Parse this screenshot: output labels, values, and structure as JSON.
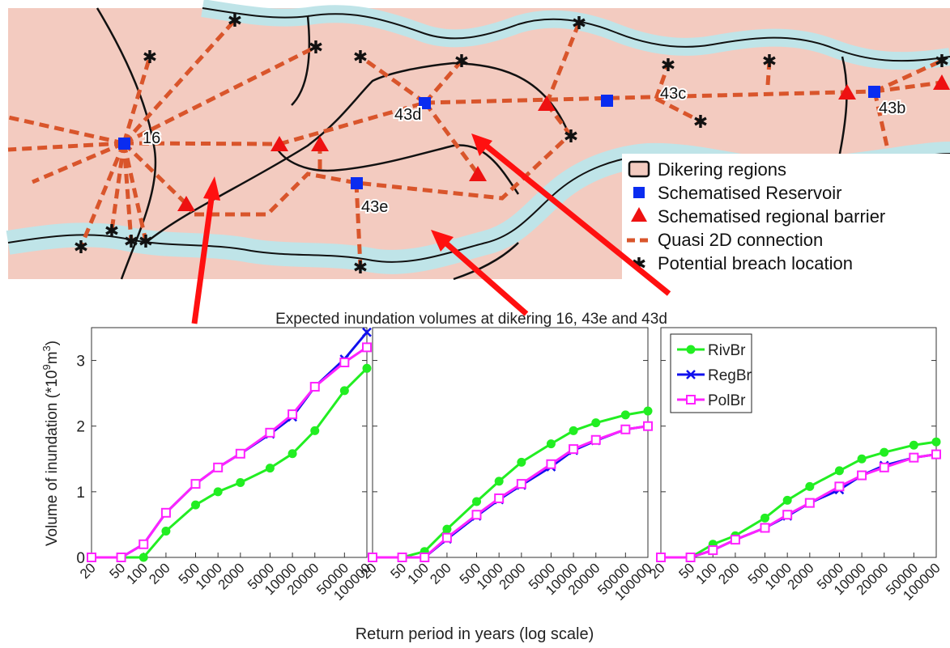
{
  "map": {
    "region_labels": [
      "16",
      "43d",
      "43c",
      "43b",
      "43e"
    ],
    "legend": [
      {
        "symbol": "dikering-box-icon",
        "label": "Dikering regions"
      },
      {
        "symbol": "reservoir-square-icon",
        "label": "Schematised Reservoir"
      },
      {
        "symbol": "barrier-triangle-icon",
        "label": "Schematised regional barrier"
      },
      {
        "symbol": "dashed-line-icon",
        "label": "Quasi 2D connection"
      },
      {
        "symbol": "asterisk-icon",
        "label": "Potential breach location"
      }
    ],
    "colors": {
      "land": "#f3cbc0",
      "water": "#bfe4e8",
      "connection": "#d9552b",
      "reservoir": "#0a2cf0",
      "barrier": "#ee1111",
      "arrow": "#ff1010"
    }
  },
  "chart_data": {
    "type": "line",
    "title": "Expected inundation volumes at dikering 16, 43e and 43d",
    "xlabel": "Return period in years (log scale)",
    "ylabel_main": "Volume of inundation (*10",
    "ylabel_sup1": "9",
    "ylabel_mid": "m",
    "ylabel_sup2": "3",
    "ylabel_end": ")",
    "x": [
      20,
      50,
      100,
      200,
      500,
      1000,
      2000,
      5000,
      10000,
      20000,
      50000,
      100000
    ],
    "x_tick_labels": [
      "20",
      "50",
      "100",
      "200",
      "500",
      "1000",
      "2000",
      "5000",
      "10000",
      "20000",
      "50000",
      "100000"
    ],
    "x_scale": "log",
    "ylim": [
      0,
      3.5
    ],
    "y_ticks": [
      0,
      1,
      2,
      3
    ],
    "grid": false,
    "legend_placement": "top-left of third panel",
    "series_styles": [
      {
        "name": "RivBr",
        "color": "#22ee22",
        "marker": "circle"
      },
      {
        "name": "RegBr",
        "color": "#1010ee",
        "marker": "x"
      },
      {
        "name": "PolBr",
        "color": "#ff22ff",
        "marker": "square"
      }
    ],
    "panels": [
      {
        "series": [
          {
            "name": "RivBr",
            "values": [
              0,
              0,
              0,
              0.4,
              0.8,
              1.0,
              1.14,
              1.36,
              1.58,
              1.93,
              2.54,
              2.88
            ]
          },
          {
            "name": "RegBr",
            "values": [
              0,
              0,
              0.2,
              0.68,
              1.12,
              1.37,
              1.58,
              1.88,
              2.14,
              2.6,
              3.02,
              3.43
            ]
          },
          {
            "name": "PolBr",
            "values": [
              0,
              0,
              0.2,
              0.68,
              1.12,
              1.37,
              1.58,
              1.9,
              2.18,
              2.6,
              2.97,
              3.2
            ]
          }
        ]
      },
      {
        "series": [
          {
            "name": "RivBr",
            "values": [
              0,
              0,
              0.09,
              0.43,
              0.85,
              1.16,
              1.45,
              1.73,
              1.93,
              2.05,
              2.17,
              2.23
            ]
          },
          {
            "name": "RegBr",
            "values": [
              0,
              0,
              0,
              0.28,
              0.63,
              0.88,
              1.1,
              1.38,
              1.63,
              1.78,
              1.95,
              2.0
            ]
          },
          {
            "name": "PolBr",
            "values": [
              0,
              0,
              0,
              0.3,
              0.65,
              0.9,
              1.12,
              1.42,
              1.65,
              1.79,
              1.95,
              2.0
            ]
          }
        ]
      },
      {
        "series": [
          {
            "name": "RivBr",
            "values": [
              0,
              0,
              0.2,
              0.33,
              0.6,
              0.87,
              1.08,
              1.32,
              1.5,
              1.6,
              1.71,
              1.76
            ]
          },
          {
            "name": "RegBr",
            "values": [
              0,
              0,
              0.11,
              0.27,
              0.45,
              0.63,
              0.83,
              1.03,
              1.25,
              1.4,
              1.52,
              1.57
            ]
          },
          {
            "name": "PolBr",
            "values": [
              0,
              0,
              0.11,
              0.27,
              0.45,
              0.65,
              0.83,
              1.08,
              1.25,
              1.37,
              1.52,
              1.57
            ]
          }
        ]
      }
    ]
  }
}
